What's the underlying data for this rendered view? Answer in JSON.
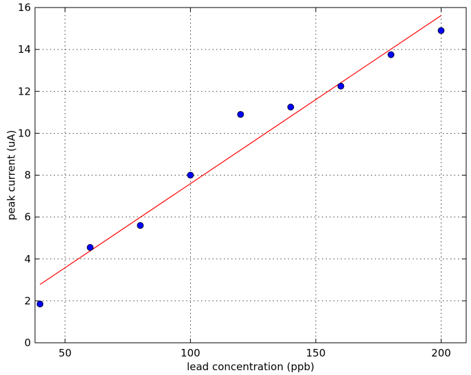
{
  "chart_data": {
    "type": "scatter",
    "xlabel": "lead concentration (ppb)",
    "ylabel": "peak current (uA)",
    "xlim": [
      38,
      210
    ],
    "ylim": [
      0,
      16
    ],
    "xticks": [
      50,
      100,
      150,
      200
    ],
    "yticks": [
      0,
      2,
      4,
      6,
      8,
      10,
      12,
      14,
      16
    ],
    "grid": true,
    "series": [
      {
        "kind": "points",
        "color": "#0000ff",
        "x": [
          40,
          60,
          80,
          100,
          120,
          140,
          160,
          180,
          200
        ],
        "y": [
          1.85,
          4.55,
          5.6,
          8.0,
          10.9,
          11.25,
          12.25,
          13.75,
          14.9
        ]
      },
      {
        "kind": "fit-line",
        "color": "#ff0000",
        "x": [
          40,
          200
        ],
        "y": [
          2.78,
          15.62
        ]
      }
    ]
  }
}
